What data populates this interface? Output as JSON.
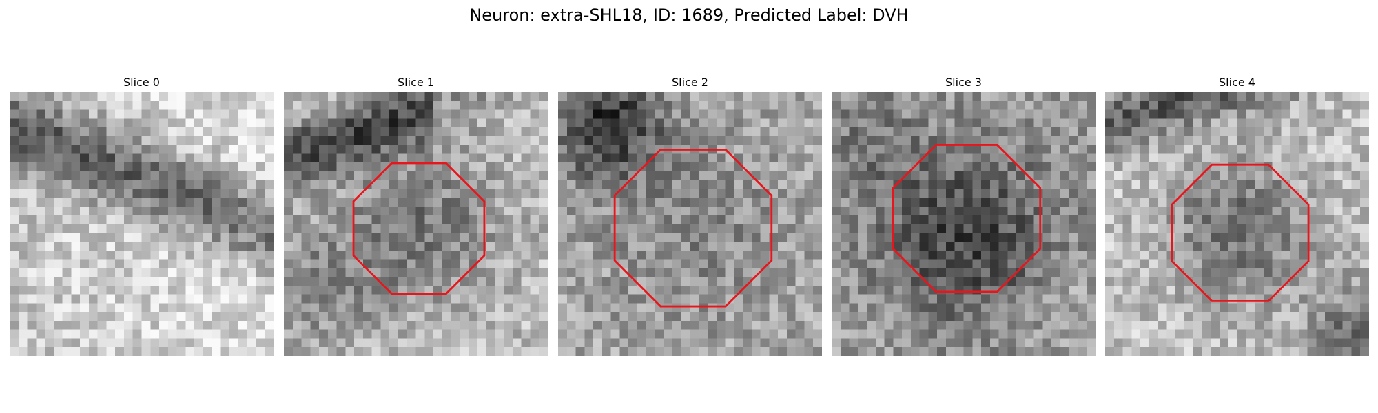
{
  "figure": {
    "title": "Neuron: extra-SHL18, ID: 1689, Predicted Label: DVH"
  },
  "panels": [
    {
      "title": "Slice 0",
      "roi": null
    },
    {
      "title": "Slice 1",
      "roi": {
        "cx": 15.35,
        "cy": 15.5,
        "r": 8.05
      }
    },
    {
      "title": "Slice 2",
      "roi": {
        "cx": 15.35,
        "cy": 15.45,
        "r": 9.65
      }
    },
    {
      "title": "Slice 3",
      "roi": {
        "cx": 15.35,
        "cy": 14.35,
        "r": 9.05
      }
    },
    {
      "title": "Slice 4",
      "roi": {
        "cx": 15.35,
        "cy": 16.0,
        "r": 8.4
      }
    }
  ],
  "colors": {
    "roi_outline": "#e8161c",
    "colormap": "gray"
  }
}
